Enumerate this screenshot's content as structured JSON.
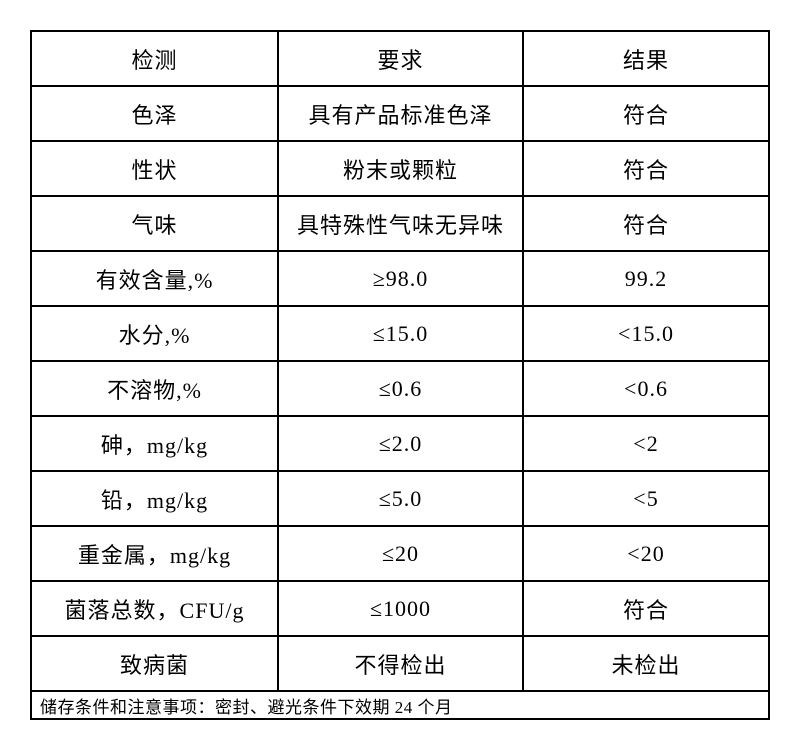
{
  "table": {
    "headers": [
      {
        "label": "检测"
      },
      {
        "label": "要求"
      },
      {
        "label": "结果"
      }
    ],
    "rows": [
      {
        "item": "色泽",
        "requirement": "具有产品标准色泽",
        "result": "符合"
      },
      {
        "item": "性状",
        "requirement": "粉末或颗粒",
        "result": "符合"
      },
      {
        "item": "气味",
        "requirement": "具特殊性气味无异味",
        "result": "符合"
      },
      {
        "item": "有效含量,%",
        "requirement": "≥98.0",
        "result": "99.2"
      },
      {
        "item": "水分,%",
        "requirement": "≤15.0",
        "result": "<15.0"
      },
      {
        "item": "不溶物,%",
        "requirement": "≤0.6",
        "result": "<0.6"
      },
      {
        "item": "砷，mg/kg",
        "requirement": "≤2.0",
        "result": "<2"
      },
      {
        "item": "铅，mg/kg",
        "requirement": "≤5.0",
        "result": "<5"
      },
      {
        "item": "重金属，mg/kg",
        "requirement": "≤20",
        "result": "<20"
      },
      {
        "item": "菌落总数，CFU/g",
        "requirement": "≤1000",
        "result": "符合"
      },
      {
        "item": "致病菌",
        "requirement": "不得检出",
        "result": "未检出"
      }
    ],
    "footer": "储存条件和注意事项：密封、避光条件下效期 24 个月",
    "border_color": "#000000",
    "background_color": "#ffffff"
  }
}
